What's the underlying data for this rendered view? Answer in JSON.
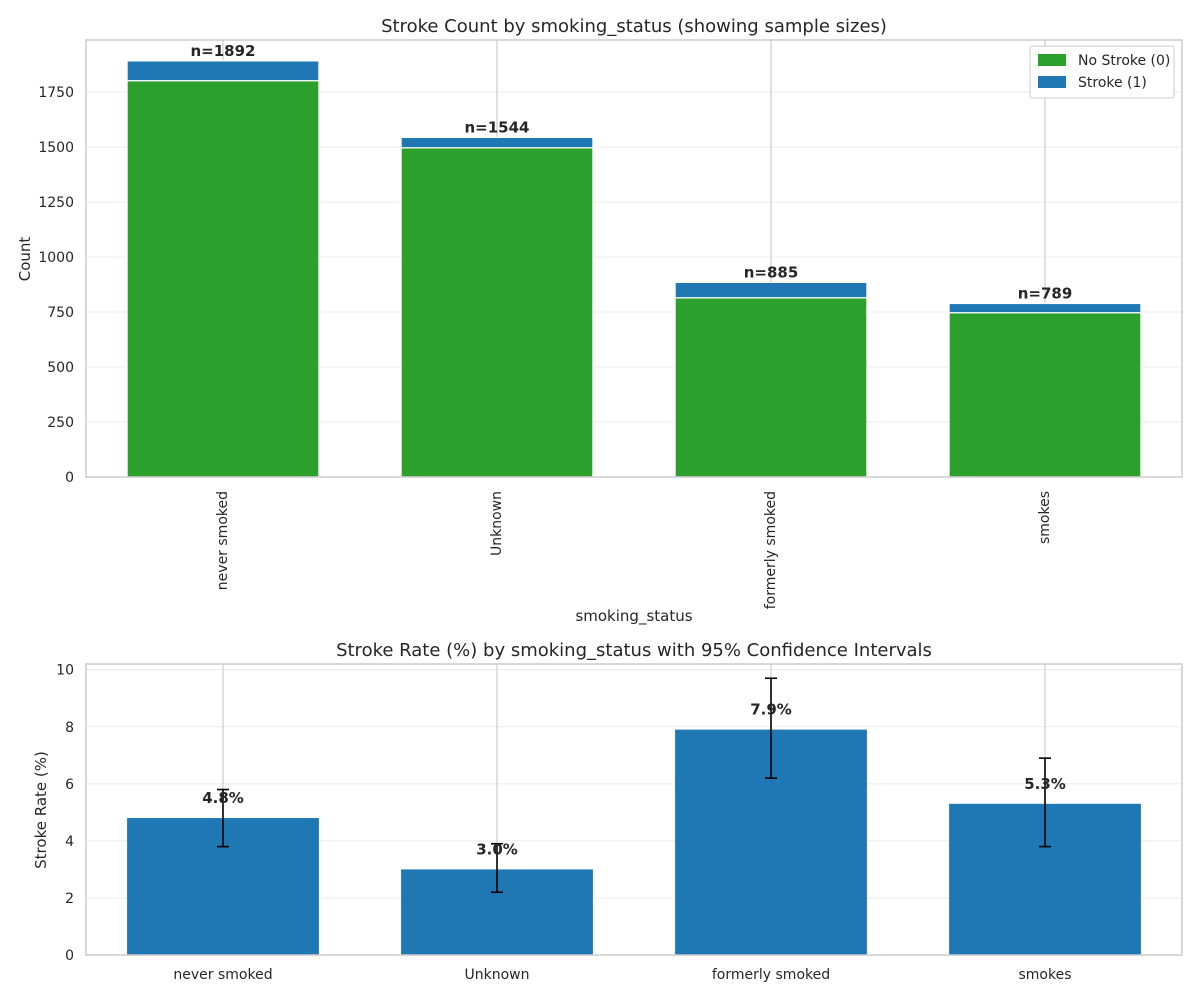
{
  "chart_data": [
    {
      "type": "bar",
      "stacked": true,
      "title": "Stroke Count by smoking_status (showing sample sizes)",
      "xlabel": "smoking_status",
      "ylabel": "Count",
      "categories": [
        "never smoked",
        "Unknown",
        "formerly smoked",
        "smokes"
      ],
      "series": [
        {
          "name": "No Stroke (0)",
          "color": "#2ca02c",
          "values": [
            1802,
            1497,
            815,
            747
          ]
        },
        {
          "name": "Stroke (1)",
          "color": "#1f77b4",
          "values": [
            90,
            47,
            70,
            42
          ]
        }
      ],
      "totals_labels": [
        "n=1892",
        "n=1544",
        "n=885",
        "n=789"
      ],
      "ylim": [
        0,
        1987
      ],
      "yticks": [
        0,
        250,
        500,
        750,
        1000,
        1250,
        1500,
        1750
      ],
      "x_tick_rotation": 90,
      "legend_position": "top-right",
      "grid": true
    },
    {
      "type": "bar",
      "title": "Stroke Rate (%) by smoking_status with 95% Confidence Intervals",
      "xlabel": "",
      "ylabel": "Stroke Rate (%)",
      "categories": [
        "never smoked",
        "Unknown",
        "formerly smoked",
        "smokes"
      ],
      "color": "#1f77b4",
      "values": [
        4.8,
        3.0,
        7.9,
        5.3
      ],
      "value_labels": [
        "4.8%",
        "3.0%",
        "7.9%",
        "5.3%"
      ],
      "ci_lower": [
        3.8,
        2.2,
        6.2,
        3.8
      ],
      "ci_upper": [
        5.8,
        3.9,
        9.7,
        6.9
      ],
      "ylim": [
        0,
        10.2
      ],
      "yticks": [
        0,
        2,
        4,
        6,
        8,
        10
      ],
      "grid": true
    }
  ]
}
